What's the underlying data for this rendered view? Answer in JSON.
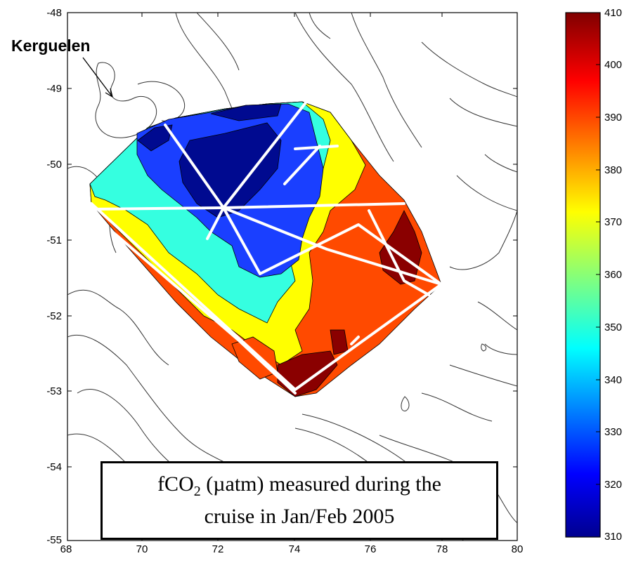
{
  "map": {
    "annotation": "Kerguelen",
    "x_ticks": [
      "68",
      "70",
      "72",
      "74",
      "76",
      "78",
      "80"
    ],
    "y_ticks": [
      "-48",
      "-49",
      "-50",
      "-51",
      "-52",
      "-53",
      "-54",
      "-55"
    ],
    "colorbar_ticks": [
      "410",
      "400",
      "390",
      "380",
      "370",
      "360",
      "350",
      "340",
      "330",
      "320",
      "310"
    ]
  },
  "caption": {
    "line1_prefix": "fCO",
    "line1_sub": "2",
    "line1_rest": " (µatm) measured during the",
    "line2": "cruise in Jan/Feb 2005"
  },
  "chart_data": {
    "type": "heatmap",
    "xlim": [
      68,
      80
    ],
    "ylim": [
      -55,
      -48
    ],
    "colorbar_range": [
      310,
      410
    ],
    "colormap": "jet",
    "colorbar_position": "right",
    "grid": false
  }
}
